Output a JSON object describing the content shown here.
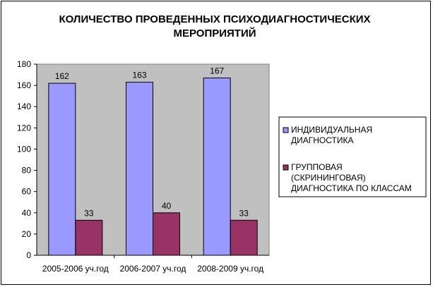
{
  "chart_data": {
    "type": "bar",
    "title": [
      "КОЛИЧЕСТВО ПРОВЕДЕННЫХ ПСИХОДИАГНОСТИЧЕСКИХ",
      "МЕРОПРИЯТИЙ"
    ],
    "categories": [
      "2005-2006 уч.год",
      "2006-2007 уч.год",
      "2008-2009 уч.год"
    ],
    "series": [
      {
        "name": [
          "ИНДИВИДУАЛЬНАЯ",
          "ДИАГНОСТИКА"
        ],
        "values": [
          162,
          163,
          167
        ],
        "color": "#9999ff"
      },
      {
        "name": [
          "ГРУППОВАЯ",
          "(СКРИНИНГОВАЯ)",
          "ДИАГНОСТИКА ПО КЛАССАМ"
        ],
        "values": [
          33,
          40,
          33
        ],
        "color": "#993366"
      }
    ],
    "ylim": [
      0,
      180
    ],
    "yticks": [
      0,
      20,
      40,
      60,
      80,
      100,
      120,
      140,
      160,
      180
    ],
    "xlabel": "",
    "ylabel": "",
    "grid": false,
    "legend": "right",
    "plot_background": "#c0c0c0"
  }
}
